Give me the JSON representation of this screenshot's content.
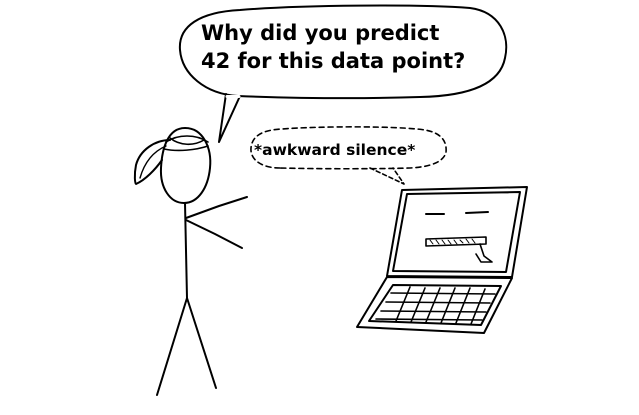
{
  "speech_bubble": {
    "line1": "Why did you predict",
    "line2": "42 for this data point?"
  },
  "thought_bubble": {
    "text": "*awkward silence*"
  },
  "colors": {
    "ink": "#000000",
    "background": "#ffffff"
  }
}
